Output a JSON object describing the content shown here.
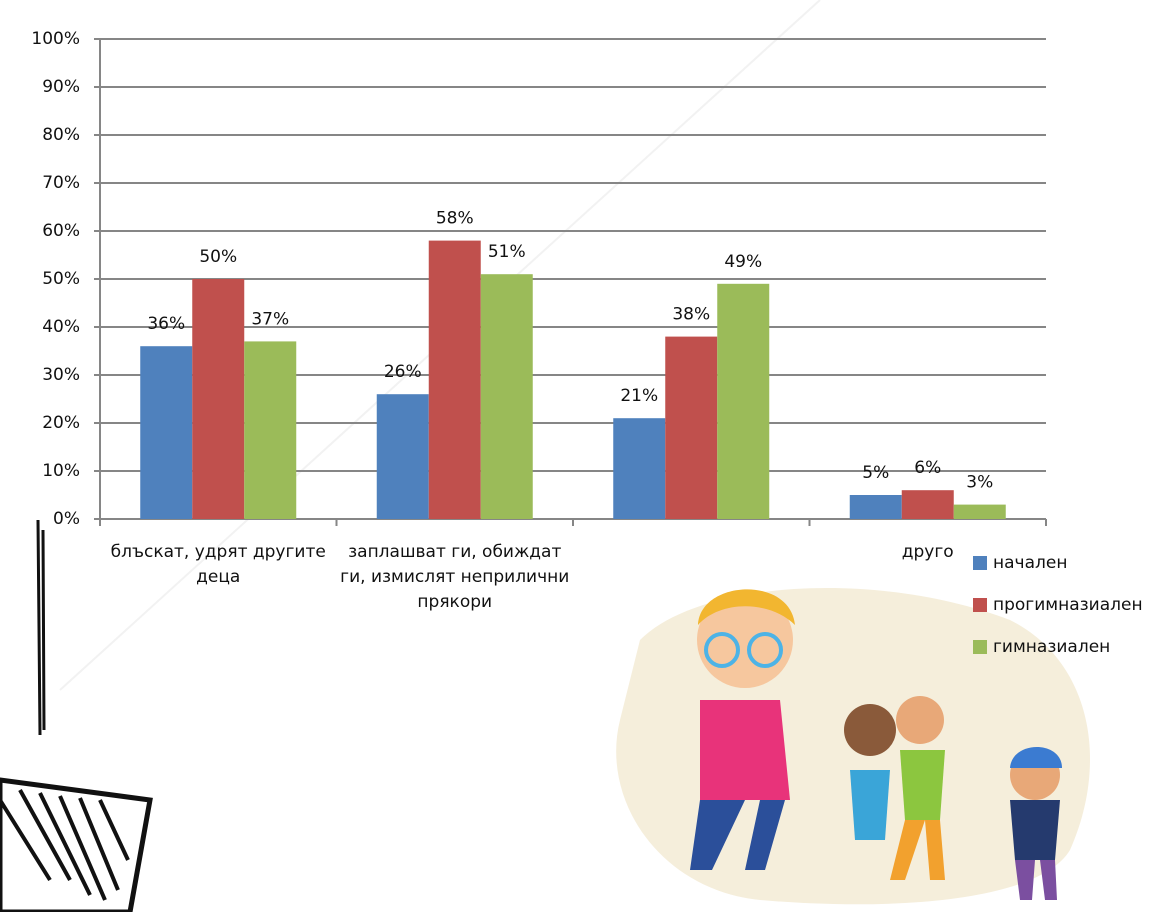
{
  "chart_data": {
    "type": "bar",
    "categories": [
      "блъскат, удрят другите деца",
      "заплашват ги, обиждат ги, измислят неприлични прякори",
      null,
      "друго"
    ],
    "series": [
      {
        "name": "начален",
        "color": "#4f81bd",
        "values": [
          36,
          26,
          21,
          5
        ],
        "value_labels": [
          "36%",
          "26%",
          "21%",
          "5%"
        ]
      },
      {
        "name": "прогимназиален",
        "color": "#c0504d",
        "values": [
          50,
          58,
          38,
          6
        ],
        "value_labels": [
          "50%",
          "58%",
          "38%",
          "6%"
        ]
      },
      {
        "name": "гимназиален",
        "color": "#9bbb59",
        "values": [
          37,
          51,
          49,
          3
        ],
        "value_labels": [
          "37%",
          "51%",
          "49%",
          "3%"
        ]
      }
    ],
    "ylim": [
      0,
      100
    ],
    "yticks": [
      {
        "value": 0,
        "label": "0%"
      },
      {
        "value": 10,
        "label": "10%"
      },
      {
        "value": 20,
        "label": "20%"
      },
      {
        "value": 30,
        "label": "30%"
      },
      {
        "value": 40,
        "label": "40%"
      },
      {
        "value": 50,
        "label": "50%"
      },
      {
        "value": 60,
        "label": "60%"
      },
      {
        "value": 70,
        "label": "70%"
      },
      {
        "value": 80,
        "label": "80%"
      },
      {
        "value": 90,
        "label": "90%"
      },
      {
        "value": 100,
        "label": "100%"
      }
    ],
    "grid": true,
    "legend": "right"
  }
}
